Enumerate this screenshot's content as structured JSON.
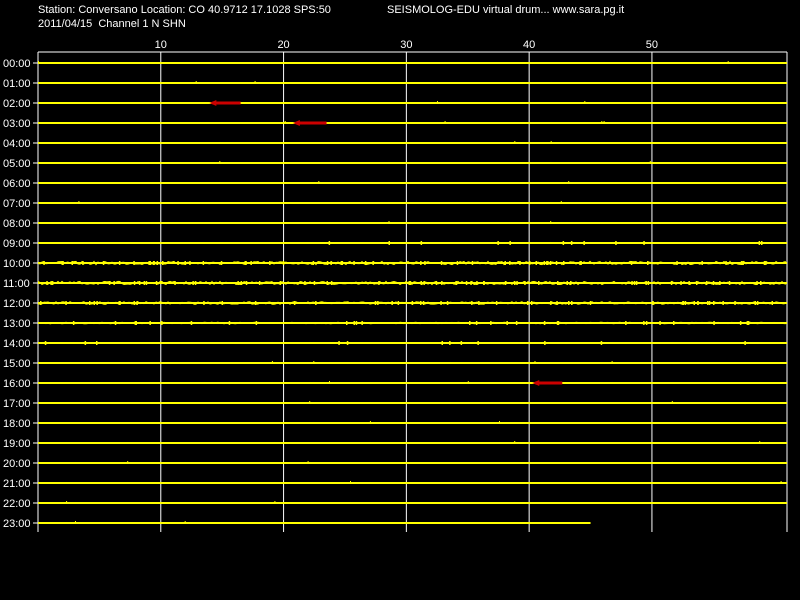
{
  "header": {
    "station_line": "Station: Conversano Location: CO 40.9712 17.1028 SPS:50",
    "app_line": "SEISMOLOG-EDU virtual drum... www.sara.pg.it",
    "date_line": "2011/04/15  Channel 1 N SHN"
  },
  "colors": {
    "background": "#000000",
    "trace": "#ffff00",
    "grid": "#ffffff",
    "event_marker": "#cc0000"
  },
  "chart_data": {
    "type": "line",
    "title": "",
    "xlabel": "",
    "ylabel": "",
    "x_ticks": [
      "10",
      "20",
      "30",
      "40",
      "50"
    ],
    "x_tick_values": [
      10,
      20,
      30,
      40,
      50
    ],
    "xlim": [
      0,
      61
    ],
    "grid": true,
    "rows": [
      {
        "label": "00:00",
        "activity": 0.05
      },
      {
        "label": "01:00",
        "activity": 0.05
      },
      {
        "label": "02:00",
        "activity": 0.05
      },
      {
        "label": "03:00",
        "activity": 0.1
      },
      {
        "label": "04:00",
        "activity": 0.05
      },
      {
        "label": "05:00",
        "activity": 0.05
      },
      {
        "label": "06:00",
        "activity": 0.05
      },
      {
        "label": "07:00",
        "activity": 0.05
      },
      {
        "label": "08:00",
        "activity": 0.05
      },
      {
        "label": "09:00",
        "activity": 0.2
      },
      {
        "label": "10:00",
        "activity": 1.0
      },
      {
        "label": "11:00",
        "activity": 1.0
      },
      {
        "label": "12:00",
        "activity": 0.8
      },
      {
        "label": "13:00",
        "activity": 0.5
      },
      {
        "label": "14:00",
        "activity": 0.2
      },
      {
        "label": "15:00",
        "activity": 0.1
      },
      {
        "label": "16:00",
        "activity": 0.05
      },
      {
        "label": "17:00",
        "activity": 0.05
      },
      {
        "label": "18:00",
        "activity": 0.05
      },
      {
        "label": "19:00",
        "activity": 0.05
      },
      {
        "label": "20:00",
        "activity": 0.05
      },
      {
        "label": "21:00",
        "activity": 0.05
      },
      {
        "label": "22:00",
        "activity": 0.05
      },
      {
        "label": "23:00",
        "activity": 0.05,
        "end_minute": 45
      }
    ],
    "events": [
      {
        "row": "02:00",
        "start_minute": 14.2,
        "end_minute": 16.5
      },
      {
        "row": "03:00",
        "start_minute": 21.0,
        "end_minute": 23.5
      },
      {
        "row": "16:00",
        "start_minute": 40.5,
        "end_minute": 42.7
      }
    ]
  }
}
